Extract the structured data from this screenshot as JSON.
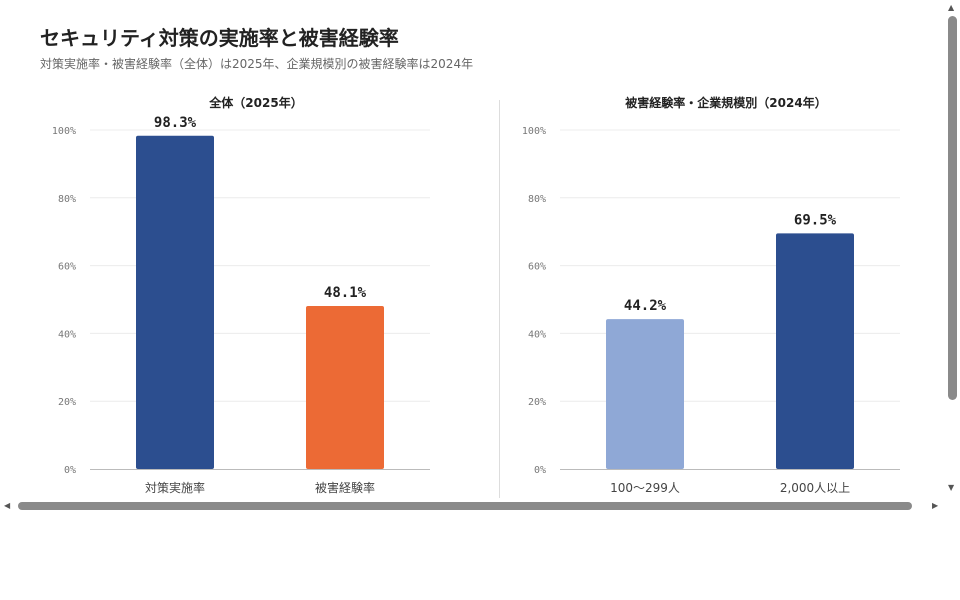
{
  "page": {
    "title": "セキュリティ対策の実施率と被害経験率",
    "subtitle": "対策実施率・被害経験率（全体）は2025年、企業規模別の被害経験率は2024年"
  },
  "chart_data": [
    {
      "type": "bar",
      "title": "全体（2025年）",
      "categories": [
        "対策実施率",
        "被害経験率"
      ],
      "values": [
        98.3,
        48.1
      ],
      "data_labels": [
        "98.3%",
        "48.1%"
      ],
      "colors": [
        "#2c4e8f",
        "#ec6a35"
      ],
      "ylim": [
        0,
        100
      ],
      "yticks": [
        "0%",
        "20%",
        "40%",
        "60%",
        "80%",
        "100%"
      ],
      "grid": true
    },
    {
      "type": "bar",
      "title": "被害経験率・企業規模別（2024年）",
      "categories": [
        "100〜299人",
        "2,000人以上"
      ],
      "values": [
        44.2,
        69.5
      ],
      "data_labels": [
        "44.2%",
        "69.5%"
      ],
      "colors": [
        "#8fa8d6",
        "#2c4e8f"
      ],
      "ylim": [
        0,
        100
      ],
      "yticks": [
        "0%",
        "20%",
        "40%",
        "60%",
        "80%",
        "100%"
      ],
      "grid": true
    }
  ],
  "scrollbar": {
    "up_arrow": "▲",
    "down_arrow": "▼",
    "left_arrow": "◀",
    "right_arrow": "▶"
  }
}
